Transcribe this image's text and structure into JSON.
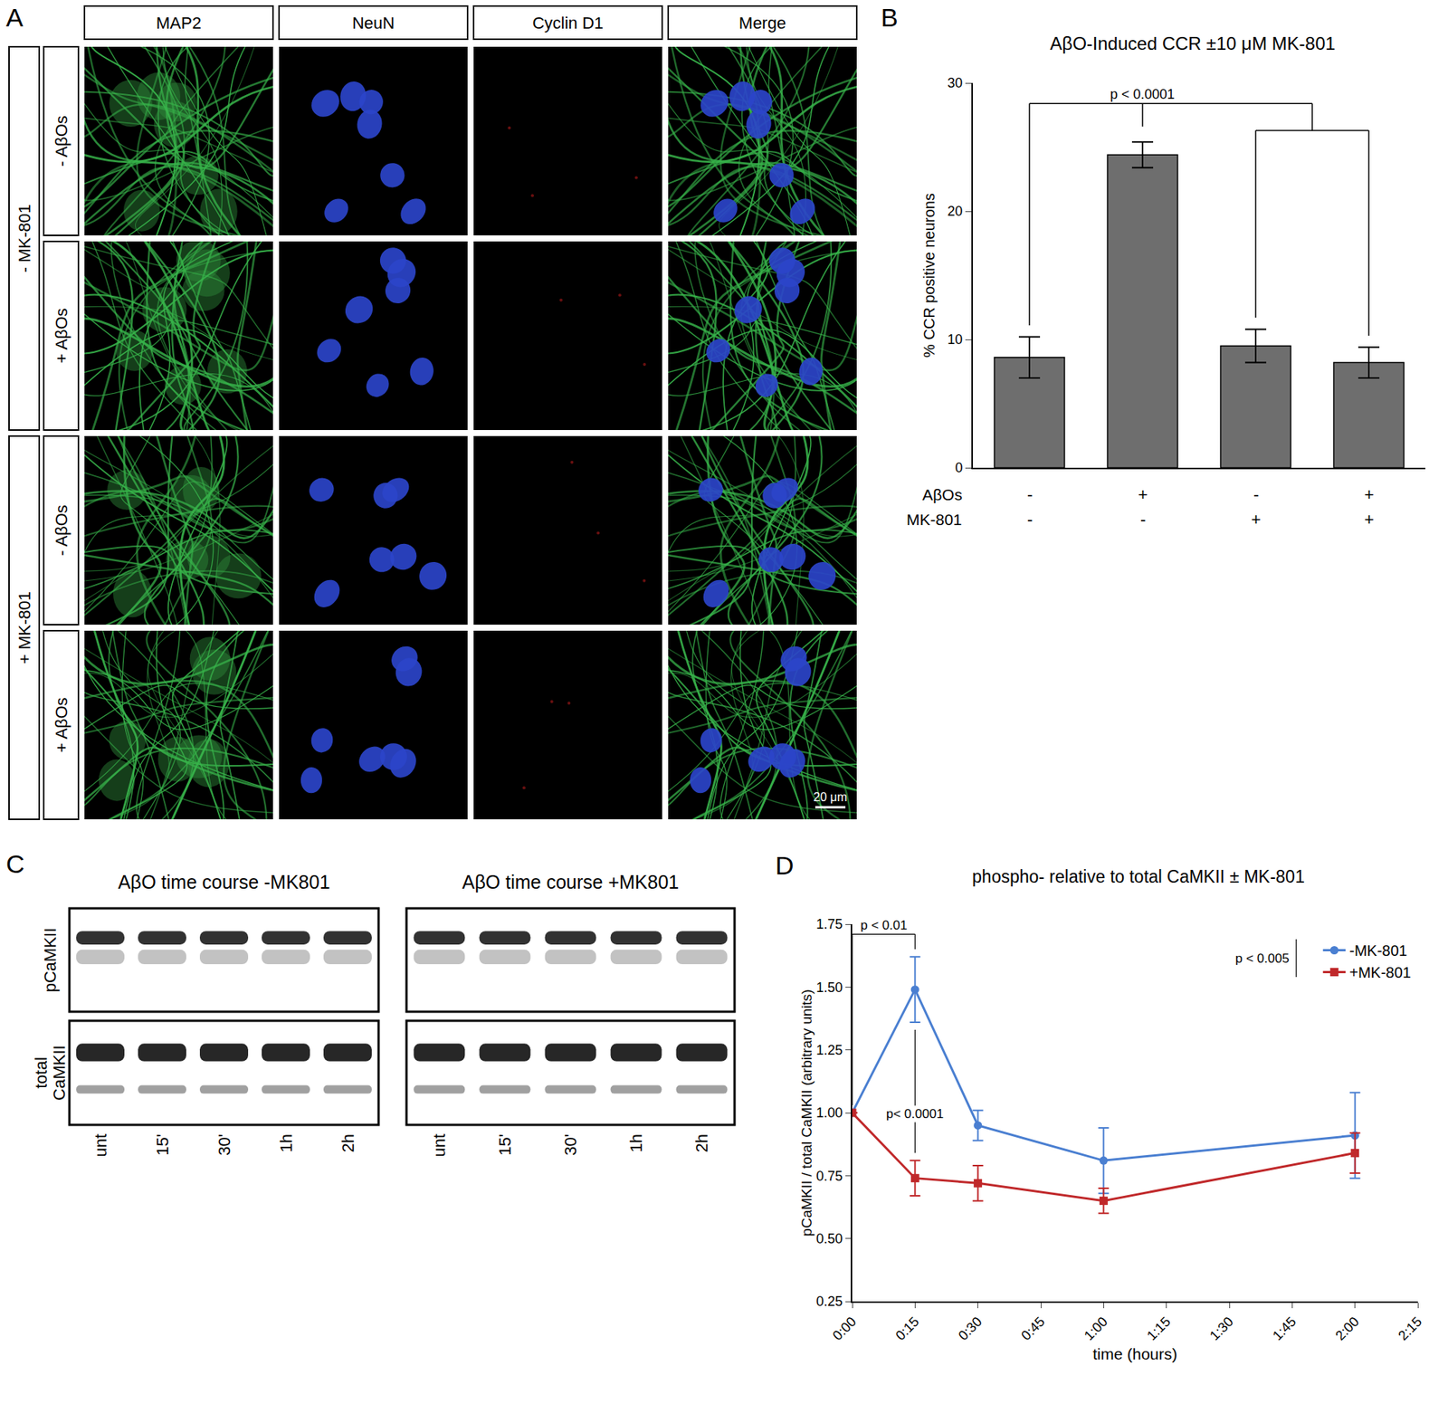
{
  "figure": {
    "panel_letters": [
      "A",
      "B",
      "C",
      "D"
    ],
    "panel_A": {
      "columns": [
        "MAP2",
        "NeuN",
        "Cyclin D1",
        "Merge"
      ],
      "groups": [
        {
          "label": "- MK-801",
          "rows": [
            "- AβOs",
            "+ AβOs"
          ]
        },
        {
          "label": "+ MK-801",
          "rows": [
            "- AβOs",
            "+ AβOs"
          ]
        }
      ],
      "scale_bar": "20 μm"
    },
    "panel_C": {
      "blots": [
        "AβO time course -MK801",
        "AβO time course +MK801"
      ],
      "rows": [
        "pCaMKII",
        "total CaMKII"
      ],
      "lanes": [
        "unt",
        "15'",
        "30'",
        "1h",
        "2h"
      ]
    }
  },
  "chart_data": [
    {
      "type": "bar",
      "title": "AβO-Induced CCR ±10 μM MK-801",
      "y_label": "% CCR positive neurons",
      "categories": [
        null,
        null,
        null,
        null
      ],
      "values": [
        8.6,
        24.4,
        9.5,
        8.2
      ],
      "errors": [
        1.6,
        1.0,
        1.3,
        1.2
      ],
      "color": "#6e6e6e",
      "ylim": [
        0,
        30
      ],
      "yticks": [
        0,
        10,
        20,
        30
      ],
      "grid": false,
      "conditions": [
        {
          "name": "AβOs",
          "values": [
            "-",
            "+",
            "-",
            "+"
          ]
        },
        {
          "name": "MK-801",
          "values": [
            "-",
            "-",
            "+",
            "+"
          ]
        }
      ],
      "significance": [
        {
          "text": "p < 0.0001",
          "compare": 1,
          "against": [
            0,
            2,
            3
          ]
        }
      ]
    },
    {
      "type": "line",
      "title": "phospho- relative to total CaMKII ± MK-801",
      "x_label": "time (hours)",
      "y_label": "pCaMKII / total CaMKII (arbitrary units)",
      "x": [
        0,
        0.25,
        0.5,
        1,
        2
      ],
      "xlim": [
        0,
        2.25
      ],
      "xticks": [
        {
          "value": 0,
          "label": "0:00"
        },
        {
          "value": 0.25,
          "label": "0:15"
        },
        {
          "value": 0.5,
          "label": "0:30"
        },
        {
          "value": 0.75,
          "label": "0:45"
        },
        {
          "value": 1,
          "label": "1:00"
        },
        {
          "value": 1.25,
          "label": "1:15"
        },
        {
          "value": 1.5,
          "label": "1:30"
        },
        {
          "value": 1.75,
          "label": "1:45"
        },
        {
          "value": 2,
          "label": "2:00"
        },
        {
          "value": 2.25,
          "label": "2:15"
        }
      ],
      "ylim": [
        0.25,
        1.75
      ],
      "yticks": [
        0.25,
        {
          "value": 0.5,
          "label": "0.50"
        },
        0.75,
        {
          "value": 1,
          "label": "1.00"
        },
        1.25,
        {
          "value": 1.5,
          "label": "1.50"
        },
        1.75
      ],
      "grid": false,
      "legend": "top right",
      "series": [
        {
          "name": "-MK-801",
          "color": "#4a7fd1",
          "marker": "circle",
          "values": [
            1.0,
            1.49,
            0.95,
            0.81,
            0.91
          ],
          "errors": [
            0,
            0.13,
            0.06,
            0.13,
            0.17
          ]
        },
        {
          "name": "+MK-801",
          "color": "#c0282a",
          "marker": "square",
          "values": [
            1.0,
            0.74,
            0.72,
            0.65,
            0.84
          ],
          "errors": [
            0,
            0.07,
            0.07,
            0.05,
            0.08
          ]
        }
      ],
      "significance": [
        {
          "text": "p < 0.01",
          "x": [
            0,
            0.25
          ],
          "series": "-MK-801"
        },
        {
          "text": "p< 0.0001",
          "x": 0.25
        },
        {
          "text": "p < 0.005",
          "series": [
            "-MK-801",
            "+MK-801"
          ]
        }
      ]
    }
  ]
}
